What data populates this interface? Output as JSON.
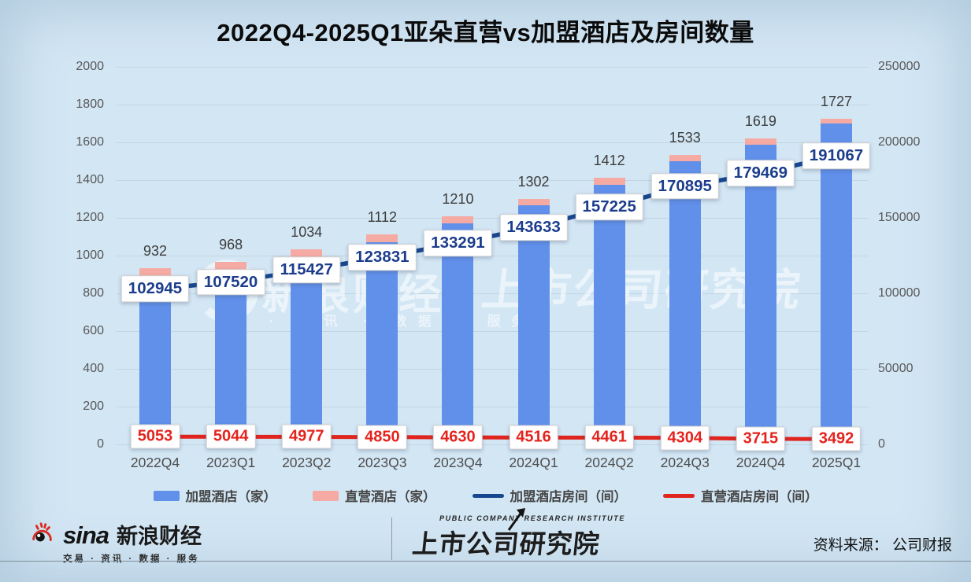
{
  "title": "2022Q4-2025Q1亚朵直营vs加盟酒店及房间数量",
  "chart_data": {
    "type": "bar",
    "subtype": "stacked-bars-with-two-lines",
    "title": "2022Q4-2025Q1亚朵直营vs加盟酒店及房间数量",
    "categories": [
      "2022Q4",
      "2023Q1",
      "2023Q2",
      "2023Q3",
      "2023Q4",
      "2024Q1",
      "2024Q2",
      "2024Q3",
      "2024Q4",
      "2025Q1"
    ],
    "total_hotels": [
      932,
      968,
      1034,
      1112,
      1210,
      1302,
      1412,
      1533,
      1619,
      1727
    ],
    "direct_hotels_est": [
      44,
      42,
      42,
      40,
      38,
      36,
      35,
      33,
      30,
      27
    ],
    "series": [
      {
        "name": "加盟酒店（家）",
        "type": "bar",
        "axis": "left",
        "color": "#6190EB"
      },
      {
        "name": "直营酒店（家）",
        "type": "bar",
        "axis": "left",
        "color": "#F5ABA4"
      },
      {
        "name": "加盟酒店房间（间）",
        "type": "line",
        "axis": "right",
        "color": "#17478F",
        "values": [
          102945,
          107520,
          115427,
          123831,
          133291,
          143633,
          157225,
          170895,
          179469,
          191067
        ]
      },
      {
        "name": "直营酒店房间（间）",
        "type": "line",
        "axis": "right",
        "color": "#E0241E",
        "values": [
          5053,
          5044,
          4977,
          4850,
          4630,
          4516,
          4461,
          4304,
          3715,
          3492
        ]
      }
    ],
    "left_axis": {
      "max": 2000,
      "ticks": [
        0,
        200,
        400,
        600,
        800,
        1000,
        1200,
        1400,
        1600,
        1800,
        2000
      ]
    },
    "right_axis": {
      "max": 250000,
      "ticks": [
        0,
        50000,
        100000,
        150000,
        200000,
        250000
      ]
    },
    "grid": true,
    "legend_position": "bottom",
    "label_colors": {
      "line_blue_text": "#1c3d8c",
      "line_red_text": "#e5231d",
      "bar_total_text": "#3c3c3c"
    }
  },
  "legend": {
    "items": [
      {
        "shape": "bar",
        "color": "#6190EB",
        "label": "加盟酒店（家）"
      },
      {
        "shape": "bar",
        "color": "#F5ABA4",
        "label": "直营酒店（家）"
      },
      {
        "shape": "line",
        "color": "#17478F",
        "label": "加盟酒店房间（间）"
      },
      {
        "shape": "line",
        "color": "#E0241E",
        "label": "直营酒店房间（间）"
      }
    ]
  },
  "watermark": {
    "left_main": "新浪财经",
    "left_sub": "· 资讯 · 数据 · 服务",
    "right_main": "上市公司研究院"
  },
  "footer": {
    "sina_en": "sina",
    "sina_cn": "新浪财经",
    "sina_tagline": "交易 · 资讯 · 数据 · 服务",
    "institute_en": "PUBLIC COMPANY RESEARCH INSTITUTE",
    "institute_cn": "上市公司研究院",
    "source": "资料来源： 公司财报"
  }
}
